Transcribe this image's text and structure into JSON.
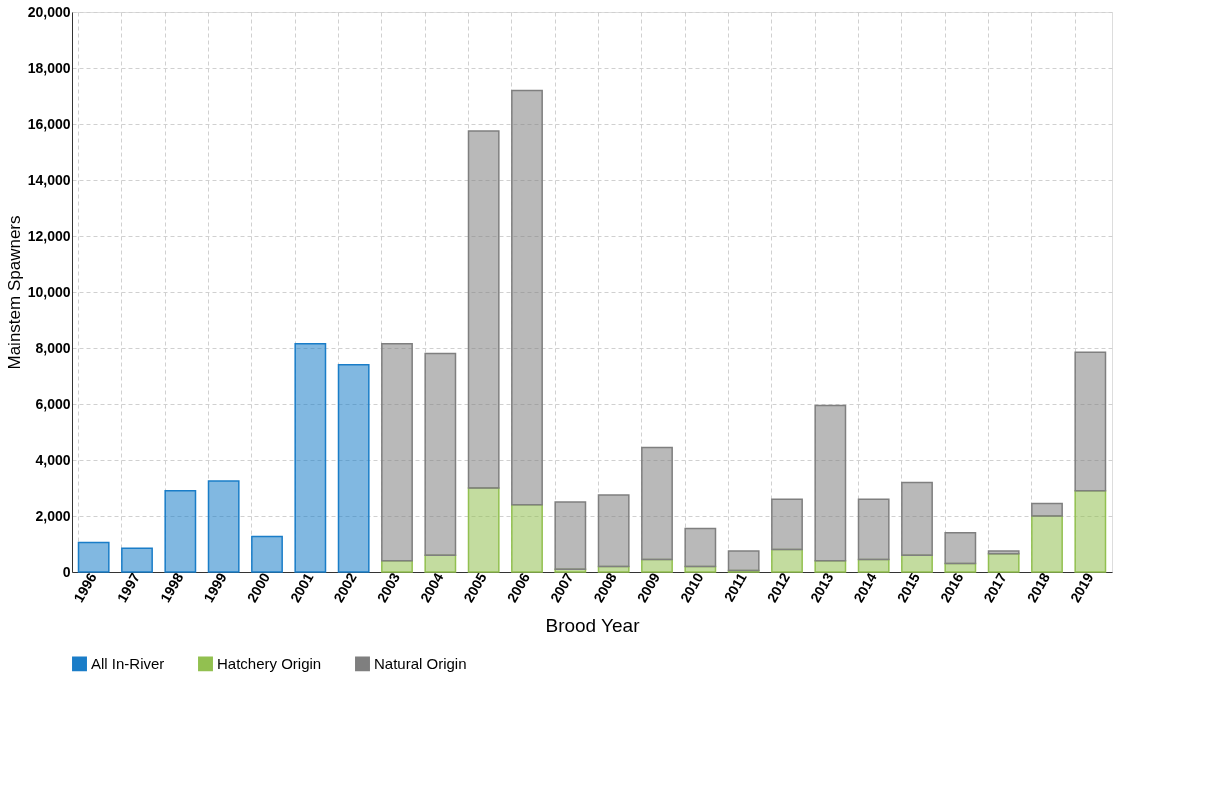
{
  "chart_data": {
    "type": "bar",
    "stacked": true,
    "xlabel": "Brood Year",
    "ylabel": "Mainstem Spawners",
    "categories": [
      "1996",
      "1997",
      "1998",
      "1999",
      "2000",
      "2001",
      "2002",
      "2003",
      "2004",
      "2005",
      "2006",
      "2007",
      "2008",
      "2009",
      "2010",
      "2011",
      "2012",
      "2013",
      "2014",
      "2015",
      "2016",
      "2017",
      "2018",
      "2019"
    ],
    "series": [
      {
        "name": "All In-River",
        "color": "#1a7dc8",
        "values": [
          1050,
          850,
          2900,
          3250,
          1270,
          8150,
          7400,
          null,
          null,
          null,
          null,
          null,
          null,
          null,
          null,
          null,
          null,
          null,
          null,
          null,
          null,
          null,
          null,
          null
        ]
      },
      {
        "name": "Hatchery Origin",
        "color": "#92c050",
        "values": [
          null,
          null,
          null,
          null,
          null,
          null,
          null,
          400,
          600,
          3000,
          2400,
          100,
          200,
          450,
          200,
          50,
          800,
          400,
          450,
          600,
          300,
          650,
          2000,
          2900
        ]
      },
      {
        "name": "Natural Origin",
        "color": "#7f7f7f",
        "values": [
          null,
          null,
          null,
          null,
          null,
          null,
          null,
          7750,
          7200,
          12750,
          14800,
          2400,
          2550,
          4000,
          1350,
          700,
          1800,
          5550,
          2150,
          2600,
          1100,
          100,
          450,
          4950
        ]
      }
    ],
    "ylim": [
      0,
      20000
    ],
    "yticks": [
      0,
      {
        "value": 2000,
        "label": "2,000"
      },
      {
        "value": 4000,
        "label": "4,000"
      },
      {
        "value": 6000,
        "label": "6,000"
      },
      {
        "value": 8000,
        "label": "8,000"
      },
      {
        "value": 10000,
        "label": "10,000"
      },
      {
        "value": 12000,
        "label": "12,000"
      },
      {
        "value": 14000,
        "label": "14,000"
      },
      {
        "value": 16000,
        "label": "16,000"
      },
      {
        "value": 18000,
        "label": "18,000"
      },
      {
        "value": 20000,
        "label": "20,000"
      }
    ],
    "grid": true,
    "legend": "bottom"
  }
}
